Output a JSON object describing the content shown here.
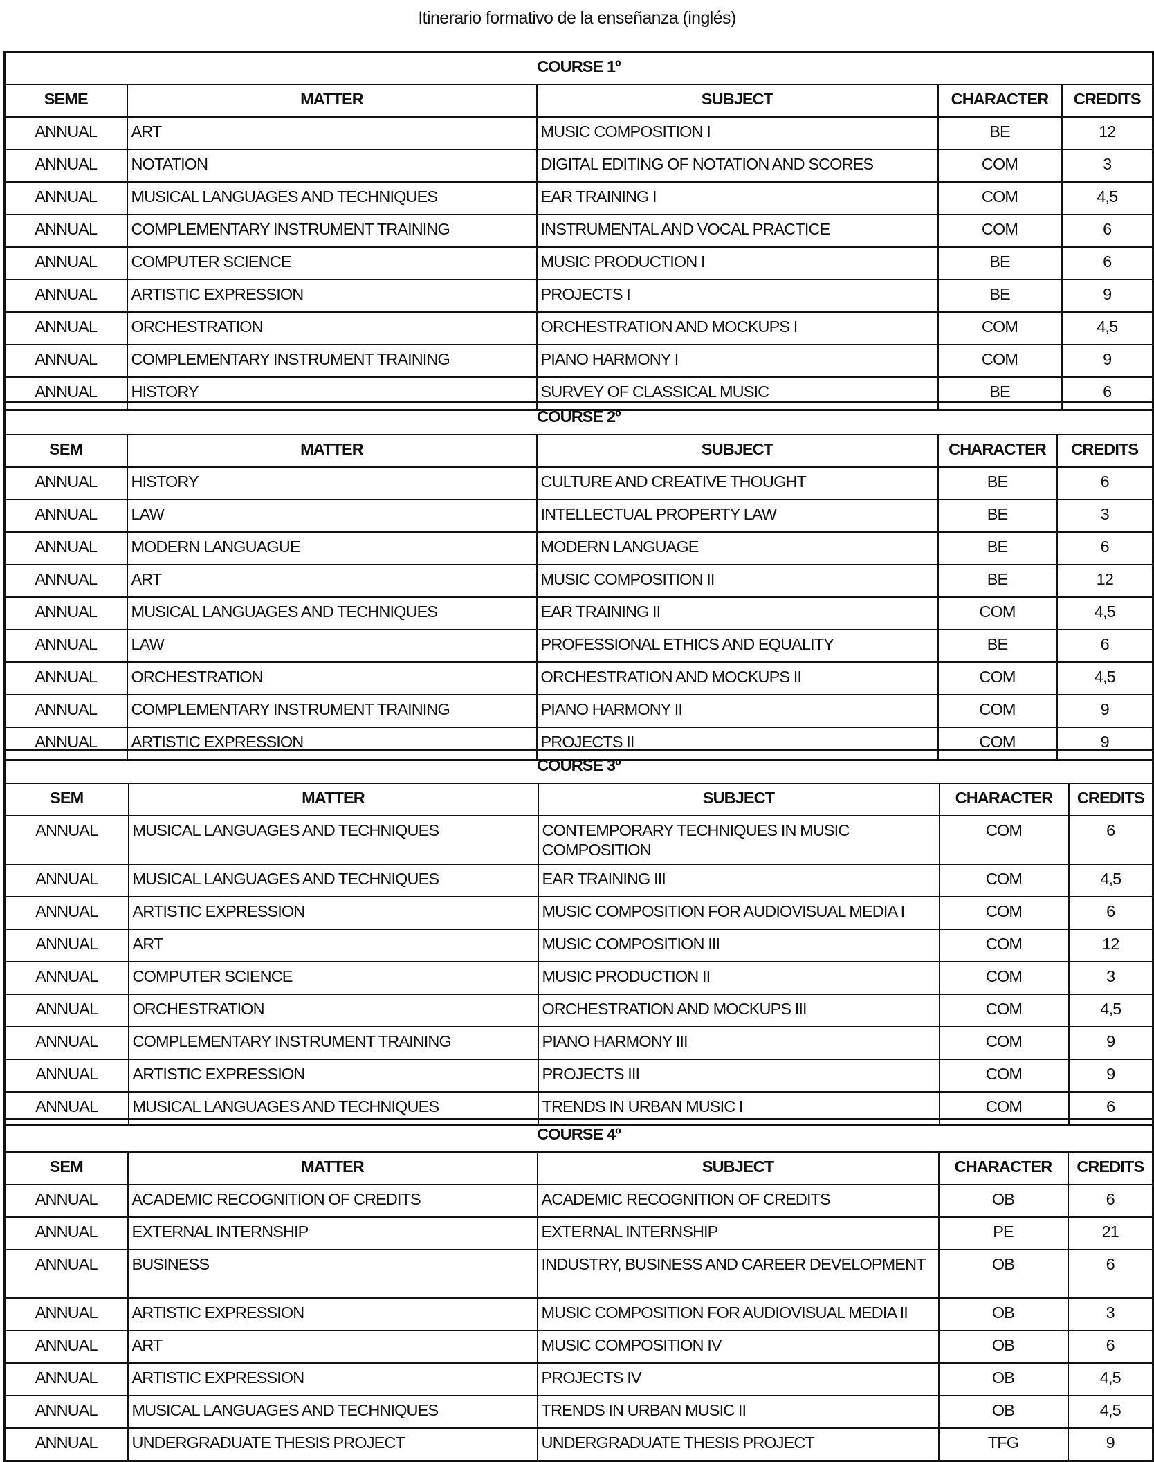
{
  "title": "Itinerario formativo de la enseñanza (inglés)",
  "courses": [
    {
      "caption": "COURSE 1º",
      "headers": [
        "SEME",
        "MATTER",
        "SUBJECT",
        "CHARACTER",
        "CREDITS"
      ],
      "rows": [
        {
          "sem": "ANNUAL",
          "matter": "ART",
          "subject": "MUSIC COMPOSITION I",
          "character": "BE",
          "credits": "12"
        },
        {
          "sem": "ANNUAL",
          "matter": "NOTATION",
          "subject": "DIGITAL EDITING OF NOTATION AND SCORES",
          "character": "COM",
          "credits": "3"
        },
        {
          "sem": "ANNUAL",
          "matter": "MUSICAL LANGUAGES AND TECHNIQUES",
          "subject": "EAR TRAINING I",
          "character": "COM",
          "credits": "4,5"
        },
        {
          "sem": "ANNUAL",
          "matter": "COMPLEMENTARY INSTRUMENT TRAINING",
          "subject": "INSTRUMENTAL AND VOCAL PRACTICE",
          "character": "COM",
          "credits": "6"
        },
        {
          "sem": "ANNUAL",
          "matter": "COMPUTER SCIENCE",
          "subject": "MUSIC PRODUCTION I",
          "character": "BE",
          "credits": "6"
        },
        {
          "sem": "ANNUAL",
          "matter": "ARTISTIC EXPRESSION",
          "subject": "PROJECTS I",
          "character": "BE",
          "credits": "9"
        },
        {
          "sem": "ANNUAL",
          "matter": "ORCHESTRATION",
          "subject": "ORCHESTRATION AND MOCKUPS I",
          "character": "COM",
          "credits": "4,5"
        },
        {
          "sem": "ANNUAL",
          "matter": "COMPLEMENTARY INSTRUMENT TRAINING",
          "subject": "PIANO HARMONY I",
          "character": "COM",
          "credits": "9"
        },
        {
          "sem": "ANNUAL",
          "matter": "HISTORY",
          "subject": "SURVEY OF CLASSICAL MUSIC",
          "character": "BE",
          "credits": "6"
        }
      ]
    },
    {
      "caption": "COURSE 2º",
      "headers": [
        "SEM",
        "MATTER",
        "SUBJECT",
        "CHARACTER",
        "CREDITS"
      ],
      "rows": [
        {
          "sem": "ANNUAL",
          "matter": "HISTORY",
          "subject": "CULTURE AND CREATIVE THOUGHT",
          "character": "BE",
          "credits": "6"
        },
        {
          "sem": "ANNUAL",
          "matter": "LAW",
          "subject": "INTELLECTUAL PROPERTY LAW",
          "character": "BE",
          "credits": "3"
        },
        {
          "sem": "ANNUAL",
          "matter": "MODERN LANGUAGUE",
          "subject": "MODERN LANGUAGE",
          "character": "BE",
          "credits": "6"
        },
        {
          "sem": "ANNUAL",
          "matter": "ART",
          "subject": "MUSIC COMPOSITION II",
          "character": "BE",
          "credits": "12"
        },
        {
          "sem": "ANNUAL",
          "matter": "MUSICAL LANGUAGES AND TECHNIQUES",
          "subject": "EAR TRAINING II",
          "character": "COM",
          "credits": "4,5"
        },
        {
          "sem": "ANNUAL",
          "matter": "LAW",
          "subject": "PROFESSIONAL ETHICS AND EQUALITY",
          "character": "BE",
          "credits": "6"
        },
        {
          "sem": "ANNUAL",
          "matter": "ORCHESTRATION",
          "subject": "ORCHESTRATION AND MOCKUPS II",
          "character": "COM",
          "credits": "4,5"
        },
        {
          "sem": "ANNUAL",
          "matter": "COMPLEMENTARY INSTRUMENT TRAINING",
          "subject": "PIANO HARMONY II",
          "character": "COM",
          "credits": "9"
        },
        {
          "sem": "ANNUAL",
          "matter": "ARTISTIC EXPRESSION",
          "subject": "PROJECTS II",
          "character": "COM",
          "credits": "9"
        }
      ]
    },
    {
      "caption": "COURSE 3º",
      "headers": [
        "SEM",
        "MATTER",
        "SUBJECT",
        "CHARACTER",
        "CREDITS"
      ],
      "rows": [
        {
          "sem": "ANNUAL",
          "matter": "MUSICAL LANGUAGES AND TECHNIQUES",
          "subject": "CONTEMPORARY TECHNIQUES IN MUSIC COMPOSITION",
          "character": "COM",
          "credits": "6",
          "tall": true
        },
        {
          "sem": "ANNUAL",
          "matter": "MUSICAL LANGUAGES AND TECHNIQUES",
          "subject": "EAR TRAINING III",
          "character": "COM",
          "credits": "4,5"
        },
        {
          "sem": "ANNUAL",
          "matter": "ARTISTIC EXPRESSION",
          "subject": "MUSIC COMPOSITION FOR AUDIOVISUAL MEDIA I",
          "character": "COM",
          "credits": "6"
        },
        {
          "sem": "ANNUAL",
          "matter": "ART",
          "subject": "MUSIC COMPOSITION III",
          "character": "COM",
          "credits": "12"
        },
        {
          "sem": "ANNUAL",
          "matter": "COMPUTER SCIENCE",
          "subject": "MUSIC PRODUCTION II",
          "character": "COM",
          "credits": "3"
        },
        {
          "sem": "ANNUAL",
          "matter": "ORCHESTRATION",
          "subject": "ORCHESTRATION AND MOCKUPS III",
          "character": "COM",
          "credits": "4,5"
        },
        {
          "sem": "ANNUAL",
          "matter": "COMPLEMENTARY INSTRUMENT TRAINING",
          "subject": "PIANO HARMONY III",
          "character": "COM",
          "credits": "9"
        },
        {
          "sem": "ANNUAL",
          "matter": "ARTISTIC EXPRESSION",
          "subject": "PROJECTS III",
          "character": "COM",
          "credits": "9"
        },
        {
          "sem": "ANNUAL",
          "matter": "MUSICAL LANGUAGES AND TECHNIQUES",
          "subject": "TRENDS IN URBAN MUSIC I",
          "character": "COM",
          "credits": "6"
        }
      ]
    },
    {
      "caption": "COURSE 4º",
      "headers": [
        "SEM",
        "MATTER",
        "SUBJECT",
        "CHARACTER",
        "CREDITS"
      ],
      "rows": [
        {
          "sem": "ANNUAL",
          "matter": "ACADEMIC RECOGNITION OF CREDITS",
          "subject": "ACADEMIC RECOGNITION OF CREDITS",
          "character": "OB",
          "credits": "6"
        },
        {
          "sem": "ANNUAL",
          "matter": "EXTERNAL INTERNSHIP",
          "subject": "EXTERNAL INTERNSHIP",
          "character": "PE",
          "credits": "21"
        },
        {
          "sem": "ANNUAL",
          "matter": "BUSINESS",
          "subject": "INDUSTRY, BUSINESS AND CAREER DEVELOPMENT",
          "character": "OB",
          "credits": "6",
          "tall": true
        },
        {
          "sem": "ANNUAL",
          "matter": "ARTISTIC EXPRESSION",
          "subject": "MUSIC COMPOSITION FOR AUDIOVISUAL MEDIA II",
          "character": "OB",
          "credits": "3"
        },
        {
          "sem": "ANNUAL",
          "matter": "ART",
          "subject": "MUSIC COMPOSITION IV",
          "character": "OB",
          "credits": "6"
        },
        {
          "sem": "ANNUAL",
          "matter": "ARTISTIC EXPRESSION",
          "subject": "PROJECTS IV",
          "character": "OB",
          "credits": "4,5"
        },
        {
          "sem": "ANNUAL",
          "matter": "MUSICAL LANGUAGES AND TECHNIQUES",
          "subject": "TRENDS IN URBAN MUSIC II",
          "character": "OB",
          "credits": "4,5"
        },
        {
          "sem": "ANNUAL",
          "matter": "UNDERGRADUATE THESIS PROJECT",
          "subject": "UNDERGRADUATE THESIS PROJECT",
          "character": "TFG",
          "credits": "9"
        }
      ]
    }
  ]
}
